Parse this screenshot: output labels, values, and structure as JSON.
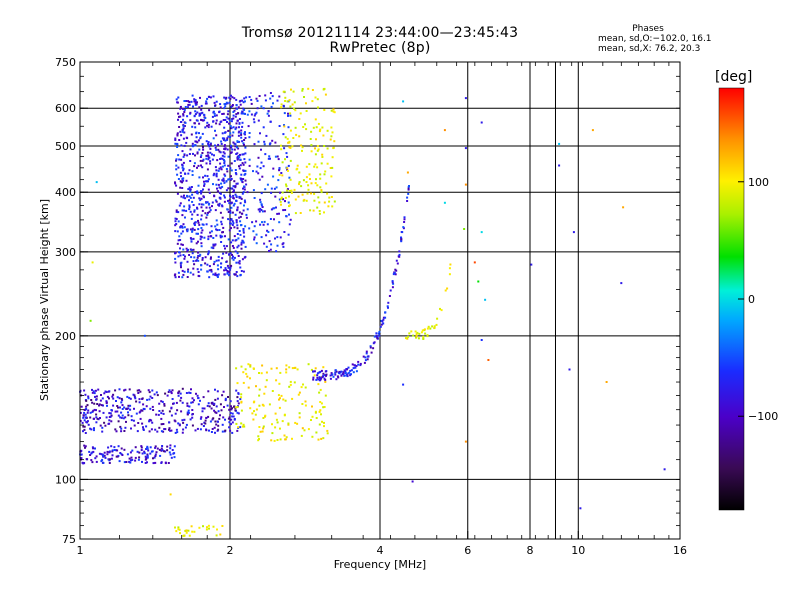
{
  "header": {
    "title": "Tromsø 20121114 23:44:00—23:45:43",
    "subtitle": "RwPretec (8p)"
  },
  "stats": {
    "heading": "Phases",
    "line_o": "mean, sd,O:−102.0, 16.1",
    "line_x": "mean, sd,X:  76.2, 20.3"
  },
  "colorbar": {
    "unit": "[deg]",
    "range": [
      -180,
      180
    ],
    "ticks": [
      {
        "value": 100,
        "label": "100"
      },
      {
        "value": 0,
        "label": "0"
      },
      {
        "value": -100,
        "label": "−100"
      }
    ]
  },
  "chart_data": {
    "type": "scatter",
    "xlabel": "Frequency [MHz]",
    "ylabel": "Stationary phase Virtual Height [km]",
    "x_scale": "log",
    "y_scale": "log",
    "xlim": [
      1,
      16
    ],
    "ylim": [
      75,
      750
    ],
    "x_ticks": [
      1,
      2,
      4,
      6,
      8,
      10,
      16
    ],
    "y_ticks": [
      75,
      100,
      200,
      300,
      400,
      500,
      600,
      750
    ],
    "grid": true,
    "color_variable": "phase (deg)",
    "clusters": [
      {
        "name": "O-trace F region echoes (bulk)",
        "x_range": [
          1.55,
          2.15
        ],
        "y_range": [
          265,
          640
        ],
        "phase_mean": -110,
        "count": 900
      },
      {
        "name": "O-trace upper extension",
        "x_range": [
          2.05,
          2.65
        ],
        "y_range": [
          300,
          650
        ],
        "phase_mean": -105,
        "count": 220
      },
      {
        "name": "X-trace F region echoes",
        "x_range": [
          2.5,
          3.25
        ],
        "y_range": [
          360,
          660
        ],
        "phase_mean": 70,
        "count": 180
      },
      {
        "name": "O-trace E region lower",
        "x_range": [
          1.0,
          1.55
        ],
        "y_range": [
          108,
          118
        ],
        "phase_mean": -115,
        "count": 150
      },
      {
        "name": "O-trace E region upper",
        "x_range": [
          1.0,
          2.1
        ],
        "y_range": [
          125,
          155
        ],
        "phase_mean": -120,
        "count": 420
      },
      {
        "name": "X-trace E region",
        "x_range": [
          2.05,
          3.15
        ],
        "y_range": [
          120,
          175
        ],
        "phase_mean": 75,
        "count": 160
      },
      {
        "name": "O-trace F2 rising branch",
        "x_range": [
          2.9,
          4.6
        ],
        "y_range": [
          165,
          430
        ],
        "phase_mean": -110,
        "count": 160
      },
      {
        "name": "X-trace F2 rising branch",
        "x_range": [
          4.5,
          5.6
        ],
        "y_range": [
          200,
          300
        ],
        "phase_mean": 70,
        "count": 40
      },
      {
        "name": "Low-height X echoes",
        "x_range": [
          1.55,
          1.95
        ],
        "y_range": [
          76,
          80
        ],
        "phase_mean": 70,
        "count": 30
      }
    ],
    "isolated_points": [
      {
        "x": 1.08,
        "y": 420,
        "phase": -50
      },
      {
        "x": 1.06,
        "y": 285,
        "phase": 70
      },
      {
        "x": 1.05,
        "y": 215,
        "phase": 30
      },
      {
        "x": 1.35,
        "y": 200,
        "phase": -90
      },
      {
        "x": 1.52,
        "y": 93,
        "phase": 90
      },
      {
        "x": 4.45,
        "y": 620,
        "phase": -50
      },
      {
        "x": 5.95,
        "y": 630,
        "phase": -110
      },
      {
        "x": 6.4,
        "y": 560,
        "phase": -110
      },
      {
        "x": 5.4,
        "y": 540,
        "phase": 120
      },
      {
        "x": 5.95,
        "y": 495,
        "phase": -110
      },
      {
        "x": 4.55,
        "y": 440,
        "phase": 110
      },
      {
        "x": 5.95,
        "y": 415,
        "phase": 120
      },
      {
        "x": 5.4,
        "y": 380,
        "phase": -40
      },
      {
        "x": 5.9,
        "y": 335,
        "phase": 30
      },
      {
        "x": 6.4,
        "y": 330,
        "phase": -40
      },
      {
        "x": 6.2,
        "y": 285,
        "phase": 150
      },
      {
        "x": 6.3,
        "y": 260,
        "phase": 0
      },
      {
        "x": 6.5,
        "y": 238,
        "phase": -50
      },
      {
        "x": 6.4,
        "y": 196,
        "phase": -100
      },
      {
        "x": 6.6,
        "y": 178,
        "phase": 140
      },
      {
        "x": 4.45,
        "y": 158,
        "phase": -100
      },
      {
        "x": 4.65,
        "y": 99,
        "phase": -120
      },
      {
        "x": 5.95,
        "y": 120,
        "phase": 120
      },
      {
        "x": 8.05,
        "y": 282,
        "phase": -110
      },
      {
        "x": 9.15,
        "y": 505,
        "phase": -50
      },
      {
        "x": 9.15,
        "y": 455,
        "phase": -110
      },
      {
        "x": 9.8,
        "y": 330,
        "phase": -110
      },
      {
        "x": 9.6,
        "y": 170,
        "phase": -110
      },
      {
        "x": 10.7,
        "y": 540,
        "phase": 110
      },
      {
        "x": 12.3,
        "y": 372,
        "phase": 110
      },
      {
        "x": 11.4,
        "y": 160,
        "phase": 110
      },
      {
        "x": 12.2,
        "y": 258,
        "phase": -110
      },
      {
        "x": 10.1,
        "y": 87,
        "phase": -110
      },
      {
        "x": 14.9,
        "y": 105,
        "phase": -110
      }
    ]
  }
}
